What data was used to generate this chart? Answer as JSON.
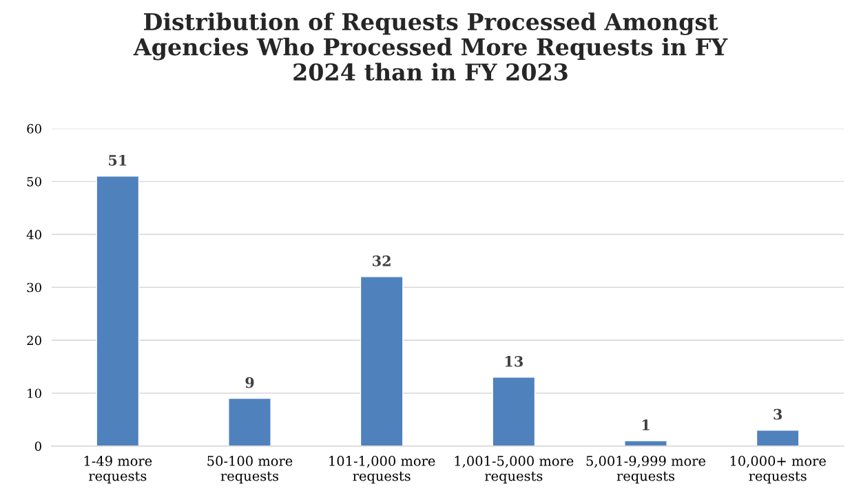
{
  "chart_data": {
    "type": "bar",
    "title": "Distribution of Requests Processed Amongst\nAgencies Who Processed More Requests in FY\n2024 than in FY 2023",
    "categories": [
      "1-49 more\nrequests",
      "50-100 more\nrequests",
      "101-1,000 more\nrequests",
      "1,001-5,000 more\nrequests",
      "5,001-9,999 more\nrequests",
      "10,000+ more\nrequests"
    ],
    "values": [
      51,
      9,
      32,
      13,
      1,
      3
    ],
    "color": "#4f81bd",
    "ylim": [
      0,
      60
    ],
    "yticks": [
      0,
      10,
      20,
      30,
      40,
      50,
      60
    ],
    "grid": "y",
    "data_labels": true
  }
}
